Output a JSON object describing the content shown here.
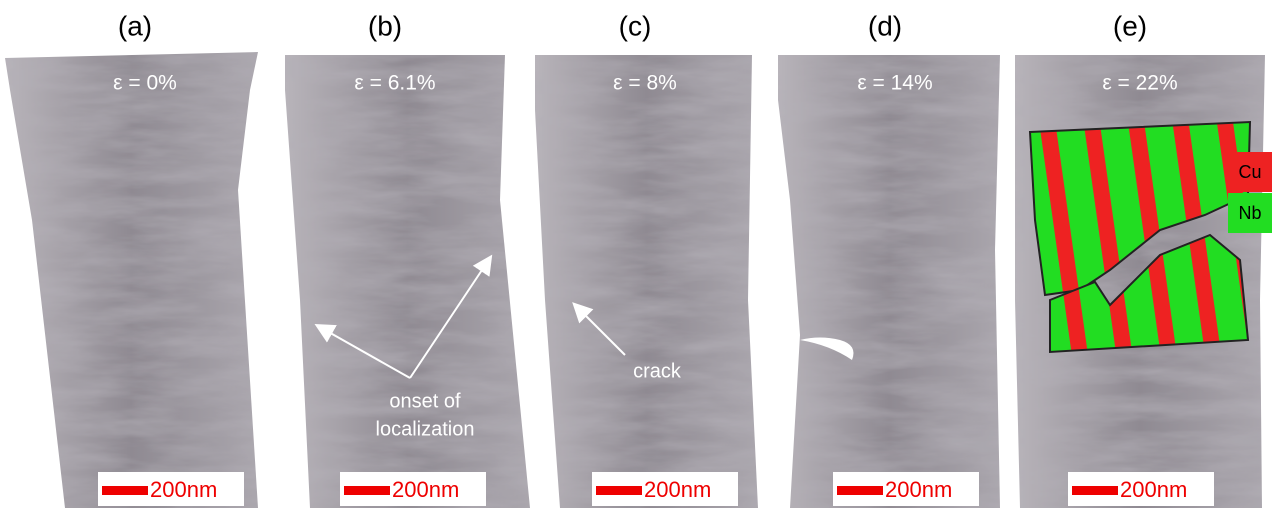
{
  "panels": [
    {
      "label": "(a)",
      "strain": "ε = 0%",
      "scale_bar": "200nm"
    },
    {
      "label": "(b)",
      "strain": "ε = 6.1%",
      "scale_bar": "200nm"
    },
    {
      "label": "(c)",
      "strain": "ε = 8%",
      "scale_bar": "200nm"
    },
    {
      "label": "(d)",
      "strain": "ε = 14%",
      "scale_bar": "200nm"
    },
    {
      "label": "(e)",
      "strain": "ε = 22%",
      "scale_bar": "200nm"
    }
  ],
  "annotations": {
    "localization": [
      "onset of",
      "localization"
    ],
    "crack": "crack"
  },
  "legend": {
    "cu": "Cu",
    "nb": "Nb"
  }
}
